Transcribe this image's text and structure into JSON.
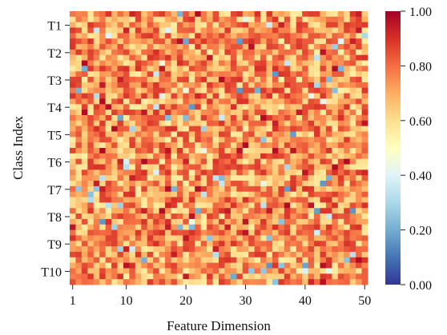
{
  "chart_data": {
    "type": "heatmap",
    "title": "",
    "xlabel": "Feature Dimension",
    "ylabel": "Class Index",
    "y_categories": [
      "T1",
      "T2",
      "T3",
      "T4",
      "T5",
      "T6",
      "T7",
      "T8",
      "T9",
      "T10"
    ],
    "x_range": [
      1,
      50
    ],
    "x_tick_labels": [
      "1",
      "10",
      "20",
      "30",
      "40",
      "50"
    ],
    "x_tick_values": [
      1,
      10,
      20,
      30,
      40,
      50
    ],
    "n_columns": 50,
    "n_rows": 50,
    "rows_per_class": 5,
    "value_range": [
      0.0,
      1.0
    ],
    "colorbar_tick_labels": [
      "0.00",
      "0.20",
      "0.40",
      "0.60",
      "0.80",
      "1.00"
    ],
    "colormap": "RdYlBu_r",
    "colormap_stops": [
      "#313695",
      "#4575b4",
      "#74add1",
      "#abd9e9",
      "#e0f3f8",
      "#ffffbf",
      "#fee090",
      "#fdae61",
      "#f46d43",
      "#d73027",
      "#a50026"
    ],
    "value_distribution": "cells mostly between 0.55 and 0.90 (orange/pale-yellow), a few low cells near 0.2-0.4 (blue)",
    "values_pattern_seed": 20240531
  }
}
